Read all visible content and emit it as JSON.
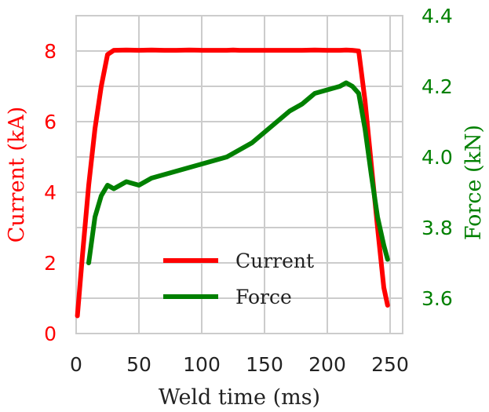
{
  "chart_data": {
    "type": "line",
    "x": [
      1,
      5,
      10,
      15,
      20,
      25,
      30,
      40,
      50,
      60,
      70,
      80,
      90,
      100,
      110,
      120,
      125,
      130,
      135,
      140,
      150,
      160,
      170,
      180,
      190,
      200,
      210,
      215,
      220,
      225,
      230,
      235,
      240,
      245,
      248
    ],
    "xlim": [
      0,
      260
    ],
    "xticks": [
      0,
      50,
      100,
      150,
      200,
      250
    ],
    "xlabel": "Weld time (ms)",
    "ylabel_left": "Current (kA)",
    "ylabel_right": "Force (kN)",
    "y_left_lim": [
      0,
      9
    ],
    "y_left_ticks": [
      0,
      2,
      4,
      6,
      8
    ],
    "y_right_lim": [
      3.5,
      4.4
    ],
    "y_right_ticks": [
      3.6,
      3.8,
      4.0,
      4.2,
      4.4
    ],
    "grid": true,
    "legend_position": "bottom-center",
    "series": [
      {
        "name": "Current",
        "axis": "left",
        "color": "#ff0000",
        "values": [
          0.5,
          2.2,
          4.2,
          5.8,
          7.0,
          7.9,
          8.02,
          8.03,
          8.02,
          8.03,
          8.02,
          8.02,
          8.03,
          8.02,
          8.02,
          8.02,
          8.03,
          8.02,
          8.02,
          8.02,
          8.02,
          8.02,
          8.02,
          8.02,
          8.03,
          8.02,
          8.02,
          8.03,
          8.02,
          8.0,
          6.6,
          4.8,
          3.0,
          1.3,
          0.8
        ]
      },
      {
        "name": "Force",
        "axis": "right",
        "color": "#008000",
        "values": [
          null,
          null,
          3.7,
          3.83,
          3.89,
          3.92,
          3.91,
          3.93,
          3.92,
          3.94,
          3.95,
          3.96,
          3.97,
          3.98,
          3.99,
          4.0,
          4.01,
          4.02,
          4.03,
          4.04,
          4.07,
          4.1,
          4.13,
          4.15,
          4.18,
          4.19,
          4.2,
          4.21,
          4.2,
          4.18,
          4.08,
          3.95,
          3.83,
          3.75,
          3.71
        ]
      }
    ]
  }
}
